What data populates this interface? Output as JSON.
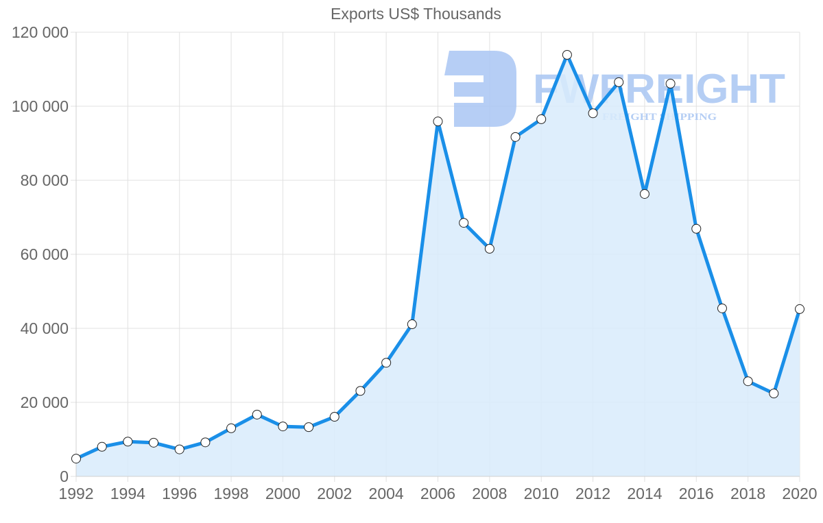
{
  "chart_data": {
    "type": "line",
    "title": "Exports US$ Thousands",
    "xlabel": "",
    "ylabel": "",
    "x": [
      1992,
      1993,
      1994,
      1995,
      1996,
      1997,
      1998,
      1999,
      2000,
      2001,
      2002,
      2003,
      2004,
      2005,
      2006,
      2007,
      2008,
      2009,
      2010,
      2011,
      2012,
      2013,
      2014,
      2015,
      2016,
      2017,
      2018,
      2019,
      2020
    ],
    "series": [
      {
        "name": "Exports US$ Thousands",
        "values": [
          4800,
          8000,
          9400,
          9100,
          7300,
          9200,
          13000,
          16700,
          13500,
          13300,
          16100,
          23100,
          30700,
          41100,
          95900,
          68500,
          61500,
          91700,
          96500,
          113900,
          98100,
          106500,
          76300,
          106100,
          66900,
          45400,
          25700,
          22400,
          45200
        ],
        "color": "#1a8fe8",
        "fill": "#d8ebfc"
      }
    ],
    "xticks": [
      "1992",
      "1994",
      "1996",
      "1998",
      "2000",
      "2002",
      "2004",
      "2006",
      "2008",
      "2010",
      "2012",
      "2014",
      "2016",
      "2018",
      "2020"
    ],
    "yticks": [
      "0",
      "20 000",
      "40 000",
      "60 000",
      "80 000",
      "100 000",
      "120 000"
    ],
    "ylim": [
      0,
      120000
    ],
    "xlim": [
      1992,
      2020
    ],
    "grid": true,
    "legend": null
  },
  "watermark": {
    "brand": "FWFREIGHT",
    "tagline": "FREIGHT SHIPPING",
    "color": "#a9c6f3"
  }
}
